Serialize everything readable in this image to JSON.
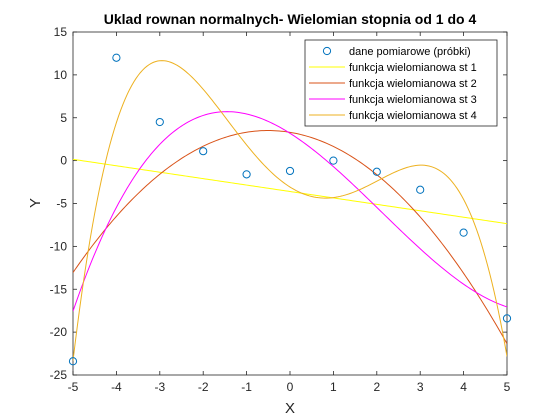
{
  "chart_data": {
    "type": "line",
    "title": "Uklad rownan normalnych- Wielomian stopnia od 1 do 4",
    "xlabel": "X",
    "ylabel": "Y",
    "xlim": [
      -5,
      5
    ],
    "ylim": [
      -25,
      15
    ],
    "xticks": [
      -5,
      -4,
      -3,
      -2,
      -1,
      0,
      1,
      2,
      3,
      4,
      5
    ],
    "yticks": [
      -25,
      -20,
      -15,
      -10,
      -5,
      0,
      5,
      10,
      15
    ],
    "grid": false,
    "legend_position": "top-right",
    "scatter": {
      "name": "dane pomiarowe (próbki)",
      "color": "#0072BD",
      "x": [
        -5,
        -4,
        -3,
        -2,
        -1,
        0,
        1,
        2,
        3,
        4,
        5
      ],
      "y": [
        -23.4,
        12.0,
        4.5,
        1.1,
        -1.6,
        -1.2,
        0.0,
        -1.3,
        -3.4,
        -8.4,
        -18.4
      ]
    },
    "series": [
      {
        "name": "funkcja wielomianowa st 1",
        "color": "#FFFF00",
        "coeffs": [
          -3.6,
          -0.75,
          0,
          0,
          0
        ]
      },
      {
        "name": "funkcja wielomianowa st 2",
        "color": "#D95319",
        "coeffs": [
          3.3,
          -0.83,
          -0.82,
          0,
          0
        ]
      },
      {
        "name": "funkcja wielomianowa st 3",
        "color": "#FF00FF",
        "coeffs": [
          3.19,
          -3.2,
          -0.82,
          0.13,
          0
        ]
      },
      {
        "name": "funkcja wielomianowa st 4",
        "color": "#EDB120",
        "coeffs": [
          -3.08,
          -3.2,
          1.95,
          0.13,
          -0.11
        ]
      }
    ]
  }
}
